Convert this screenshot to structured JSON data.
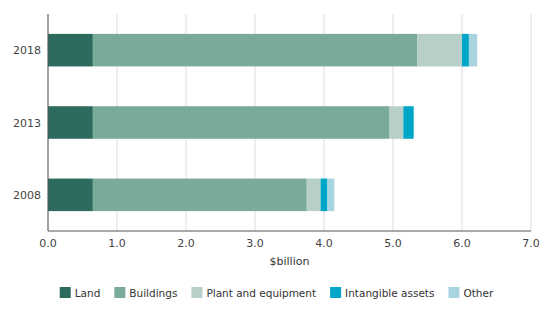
{
  "chart_data": {
    "type": "bar",
    "orientation": "horizontal",
    "stacked": true,
    "categories": [
      "2008",
      "2013",
      "2018"
    ],
    "series": [
      {
        "name": "Land",
        "color": "#2d6b5e",
        "values": [
          0.65,
          0.65,
          0.65
        ]
      },
      {
        "name": "Buildings",
        "color": "#7aab9a",
        "values": [
          3.1,
          4.3,
          4.7
        ]
      },
      {
        "name": "Plant and equipment",
        "color": "#b8cfc9",
        "values": [
          0.2,
          0.2,
          0.65
        ]
      },
      {
        "name": "Intangible assets",
        "color": "#00a6c8",
        "values": [
          0.1,
          0.15,
          0.1
        ]
      },
      {
        "name": "Other",
        "color": "#a8d4e0",
        "values": [
          0.1,
          0.0,
          0.12
        ]
      }
    ],
    "x_label": "$billion",
    "xlim": [
      0,
      7.0
    ],
    "xticks": [
      {
        "value": 0.0,
        "label": "0.0"
      },
      {
        "value": 1.0,
        "label": "1.0"
      },
      {
        "value": 2.0,
        "label": "2.0"
      },
      {
        "value": 3.0,
        "label": "3.0"
      },
      {
        "value": 4.0,
        "label": "4.0"
      },
      {
        "value": 5.0,
        "label": "5.0"
      },
      {
        "value": 6.0,
        "label": "6.0"
      },
      {
        "value": 7.0,
        "label": "7.0"
      }
    ],
    "grid": true,
    "legend": "bottom"
  }
}
